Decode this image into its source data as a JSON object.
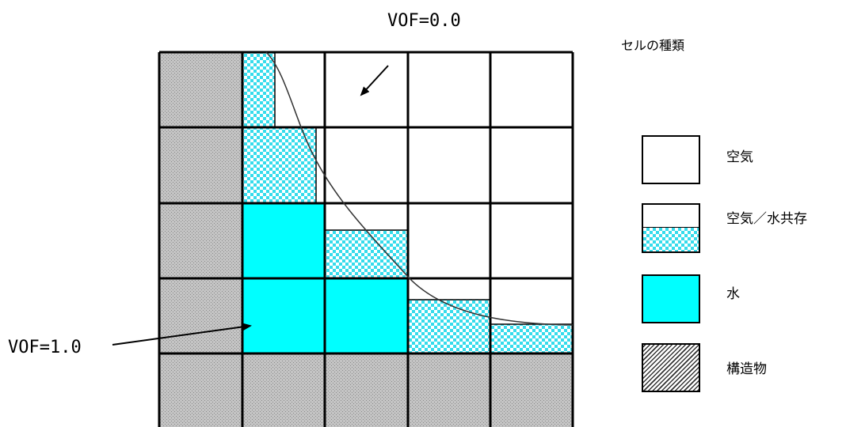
{
  "annotations": {
    "vof_zero": "VOF=0.0",
    "vof_one": "VOF=1.0"
  },
  "legend": {
    "title": "セルの種類",
    "items": [
      {
        "key": "air",
        "label": "空気"
      },
      {
        "key": "mixed",
        "label": "空気／水共存"
      },
      {
        "key": "water",
        "label": "水"
      },
      {
        "key": "structure",
        "label": "構造物"
      }
    ]
  },
  "colors": {
    "water": "#00ffff",
    "checker": "#35dcec",
    "structure": "#bdbdbd",
    "grid": "#000000",
    "air": "#ffffff"
  },
  "grid": {
    "cols": 5,
    "rows": 5,
    "structure_column": 0,
    "structure_row": 4,
    "column_fill_levels": [
      1.0,
      0.62,
      0.35,
      0.22,
      0.12
    ],
    "water_cells": [
      [
        1,
        2
      ],
      [
        1,
        3
      ],
      [
        2,
        3
      ]
    ]
  }
}
